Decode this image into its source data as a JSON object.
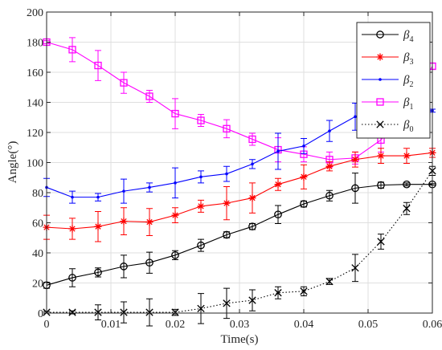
{
  "chart_data": {
    "type": "line",
    "xlabel": "Time(s)",
    "ylabel": "Angle(°)",
    "xlim": [
      0,
      0.06
    ],
    "ylim": [
      0,
      200
    ],
    "xticks": [
      0,
      0.01,
      0.02,
      0.03,
      0.04,
      0.05,
      0.06
    ],
    "xtick_labels": [
      "0",
      "0.01",
      "0.02",
      "0.03",
      "0.04",
      "0.05",
      "0.06"
    ],
    "yticks": [
      0,
      20,
      40,
      60,
      80,
      100,
      120,
      140,
      160,
      180,
      200
    ],
    "ytick_labels": [
      "0",
      "20",
      "40",
      "60",
      "80",
      "100",
      "120",
      "140",
      "160",
      "180",
      "200"
    ],
    "grid": true,
    "legend_position": "top-right",
    "series": [
      {
        "name": "β4",
        "symbol": "β",
        "subscript": "4",
        "color": "#000000",
        "marker": "circle",
        "line": "solid",
        "x": [
          0,
          0.004,
          0.008,
          0.012,
          0.016,
          0.02,
          0.024,
          0.028,
          0.032,
          0.036,
          0.04,
          0.044,
          0.048,
          0.052,
          0.056,
          0.06
        ],
        "y": [
          18.5,
          23.5,
          27,
          31,
          33.5,
          38.5,
          45,
          52,
          57.5,
          65.5,
          72.5,
          78,
          83,
          85,
          85.5,
          85.5
        ],
        "err": [
          2,
          6,
          3,
          7.5,
          7,
          3,
          4,
          2,
          2,
          6,
          2,
          3.5,
          10,
          2,
          1,
          0.5
        ]
      },
      {
        "name": "β3",
        "symbol": "β",
        "subscript": "3",
        "color": "#ff0000",
        "marker": "asterisk",
        "line": "solid",
        "x": [
          0,
          0.004,
          0.008,
          0.012,
          0.016,
          0.02,
          0.024,
          0.028,
          0.032,
          0.036,
          0.04,
          0.044,
          0.048,
          0.052,
          0.056,
          0.06
        ],
        "y": [
          57,
          56,
          57.5,
          61,
          60.5,
          65,
          71,
          73,
          76.5,
          85.5,
          90.5,
          97.5,
          102,
          104.5,
          104.5,
          106.5
        ],
        "err": [
          8,
          7,
          10,
          9,
          9,
          5,
          4,
          11,
          10,
          4,
          8,
          3,
          5,
          5,
          5,
          3
        ]
      },
      {
        "name": "β2",
        "symbol": "β",
        "subscript": "2",
        "color": "#0000ff",
        "marker": "dot",
        "line": "solid",
        "x": [
          0,
          0.004,
          0.008,
          0.012,
          0.016,
          0.02,
          0.024,
          0.028,
          0.032,
          0.036,
          0.04,
          0.044,
          0.048,
          0.052,
          0.056,
          0.06
        ],
        "y": [
          83.5,
          77,
          77,
          81,
          83.5,
          86.5,
          90.5,
          92.5,
          99,
          107.5,
          111,
          121,
          130.5,
          132.5,
          134,
          134.5
        ],
        "err": [
          6,
          4,
          2.5,
          8,
          3,
          10,
          4,
          5,
          3,
          12,
          5,
          7,
          9,
          2,
          1.5,
          1
        ]
      },
      {
        "name": "β1",
        "symbol": "β",
        "subscript": "1",
        "color": "#ff00ff",
        "marker": "square",
        "line": "solid",
        "x": [
          0,
          0.004,
          0.008,
          0.012,
          0.016,
          0.02,
          0.024,
          0.028,
          0.032,
          0.036,
          0.04,
          0.044,
          0.048,
          0.052,
          0.056,
          0.06
        ],
        "y": [
          180,
          175,
          164.5,
          153,
          144,
          132.5,
          128,
          122.5,
          115.5,
          108.5,
          105.5,
          102,
          103,
          115,
          135,
          164
        ],
        "err": [
          1,
          8,
          10,
          7,
          4,
          10,
          4,
          6,
          4,
          8,
          5,
          5,
          4,
          8,
          6,
          2
        ]
      },
      {
        "name": "β0",
        "symbol": "β",
        "subscript": "0",
        "color": "#000000",
        "marker": "x",
        "line": "dotted",
        "x": [
          0,
          0.004,
          0.008,
          0.012,
          0.016,
          0.02,
          0.024,
          0.028,
          0.032,
          0.036,
          0.04,
          0.044,
          0.048,
          0.052,
          0.056,
          0.06
        ],
        "y": [
          0.5,
          0.5,
          0.5,
          0.5,
          0.5,
          0.5,
          3,
          6.5,
          8.5,
          13.5,
          14.5,
          21,
          30,
          47.5,
          69.5,
          94.5
        ],
        "err": [
          0.5,
          1,
          5,
          7,
          9,
          2,
          10,
          10,
          7,
          4,
          3,
          2,
          9,
          5,
          4,
          3
        ]
      }
    ]
  }
}
